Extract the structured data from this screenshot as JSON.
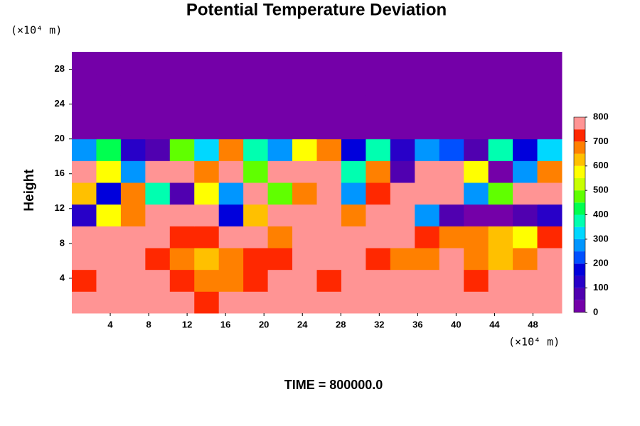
{
  "chart_data": {
    "type": "contour",
    "title": "Potential Temperature Deviation",
    "y_label": "Height",
    "y_unit": "(×10⁴ m)",
    "x_unit": "(×10⁴ m)",
    "time_label": "TIME = 800000.0",
    "xlim": [
      0,
      51
    ],
    "ylim": [
      0,
      30
    ],
    "xticks": [
      4,
      8,
      12,
      16,
      20,
      24,
      28,
      32,
      36,
      40,
      44,
      48
    ],
    "yticks": [
      4,
      8,
      12,
      16,
      20,
      24,
      28
    ],
    "levels": [
      0,
      50,
      100,
      150,
      200,
      250,
      300,
      350,
      400,
      450,
      500,
      550,
      600,
      650,
      700,
      750,
      800
    ],
    "colors": [
      "#7400a8",
      "#5000b0",
      "#2800c8",
      "#0000dc",
      "#0050ff",
      "#0096ff",
      "#00d8ff",
      "#00ffb0",
      "#00ff50",
      "#60ff00",
      "#c8ff00",
      "#ffff00",
      "#ffc000",
      "#ff8000",
      "#ff2800",
      "#ff9494"
    ],
    "colorbar_ticks": [
      0,
      100,
      200,
      300,
      400,
      500,
      600,
      700,
      800
    ],
    "z": [
      [
        800,
        800,
        800,
        800,
        800,
        750,
        800,
        800,
        800,
        800,
        800,
        800,
        800,
        800,
        800,
        800,
        800,
        800,
        800,
        800
      ],
      [
        750,
        800,
        800,
        800,
        750,
        700,
        700,
        750,
        800,
        800,
        750,
        800,
        800,
        800,
        800,
        800,
        750,
        800,
        800,
        800
      ],
      [
        800,
        800,
        800,
        750,
        700,
        650,
        700,
        750,
        750,
        800,
        800,
        800,
        750,
        700,
        700,
        800,
        700,
        650,
        700,
        800
      ],
      [
        800,
        800,
        800,
        800,
        750,
        750,
        800,
        800,
        700,
        800,
        800,
        800,
        800,
        800,
        750,
        700,
        700,
        650,
        600,
        750
      ],
      [
        150,
        600,
        700,
        800,
        800,
        800,
        200,
        650,
        800,
        800,
        800,
        700,
        800,
        800,
        300,
        100,
        50,
        50,
        100,
        150
      ],
      [
        650,
        200,
        700,
        400,
        100,
        600,
        300,
        800,
        500,
        700,
        800,
        300,
        750,
        800,
        800,
        800,
        300,
        500,
        800,
        800
      ],
      [
        800,
        600,
        300,
        800,
        800,
        700,
        800,
        500,
        800,
        800,
        800,
        400,
        700,
        100,
        800,
        800,
        600,
        50,
        300,
        700
      ],
      [
        300,
        450,
        150,
        100,
        500,
        350,
        700,
        400,
        300,
        600,
        700,
        200,
        400,
        150,
        300,
        250,
        100,
        400,
        200,
        350
      ],
      [
        0,
        0,
        0,
        0,
        0,
        0,
        0,
        0,
        0,
        0,
        0,
        0,
        0,
        0,
        0,
        0,
        0,
        0,
        0,
        0
      ],
      [
        0,
        0,
        0,
        0,
        0,
        0,
        0,
        0,
        0,
        0,
        0,
        0,
        0,
        0,
        0,
        0,
        0,
        0,
        0,
        0
      ],
      [
        0,
        0,
        0,
        0,
        0,
        0,
        0,
        0,
        0,
        0,
        0,
        0,
        0,
        0,
        0,
        0,
        0,
        0,
        0,
        0
      ],
      [
        0,
        0,
        0,
        0,
        0,
        0,
        0,
        0,
        0,
        0,
        0,
        0,
        0,
        0,
        0,
        0,
        0,
        0,
        0,
        0
      ]
    ]
  }
}
